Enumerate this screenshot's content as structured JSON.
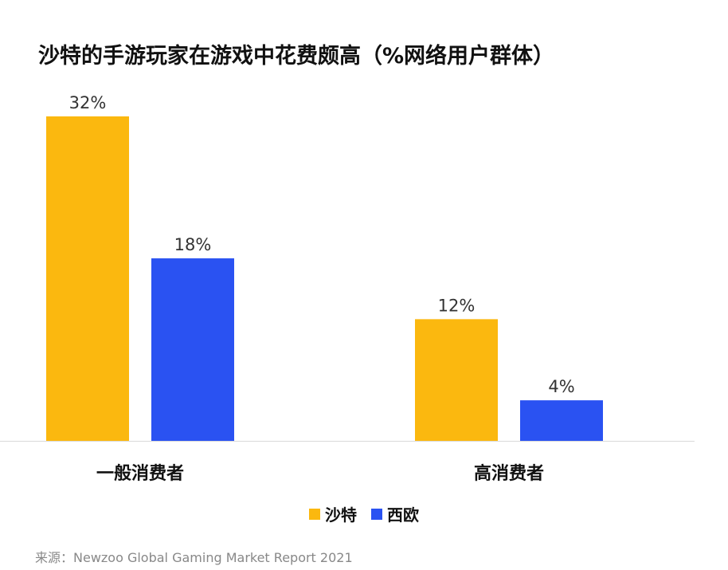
{
  "chart_data": {
    "type": "bar",
    "title": "沙特的手游玩家在游戏中花费颇高（%网络用户群体）",
    "categories": [
      "一般消费者",
      "高消费者"
    ],
    "series": [
      {
        "name": "沙特",
        "values": [
          32,
          12
        ],
        "labels": [
          "32%",
          "12%"
        ],
        "color": "#FBB80F"
      },
      {
        "name": "西欧",
        "values": [
          18,
          4
        ],
        "labels": [
          "18%",
          "4%"
        ],
        "color": "#2A52F2"
      }
    ],
    "ylim": [
      0,
      32
    ],
    "grid": false,
    "legend_position": "bottom",
    "source": "来源：Newzoo Global Gaming Market Report 2021"
  }
}
